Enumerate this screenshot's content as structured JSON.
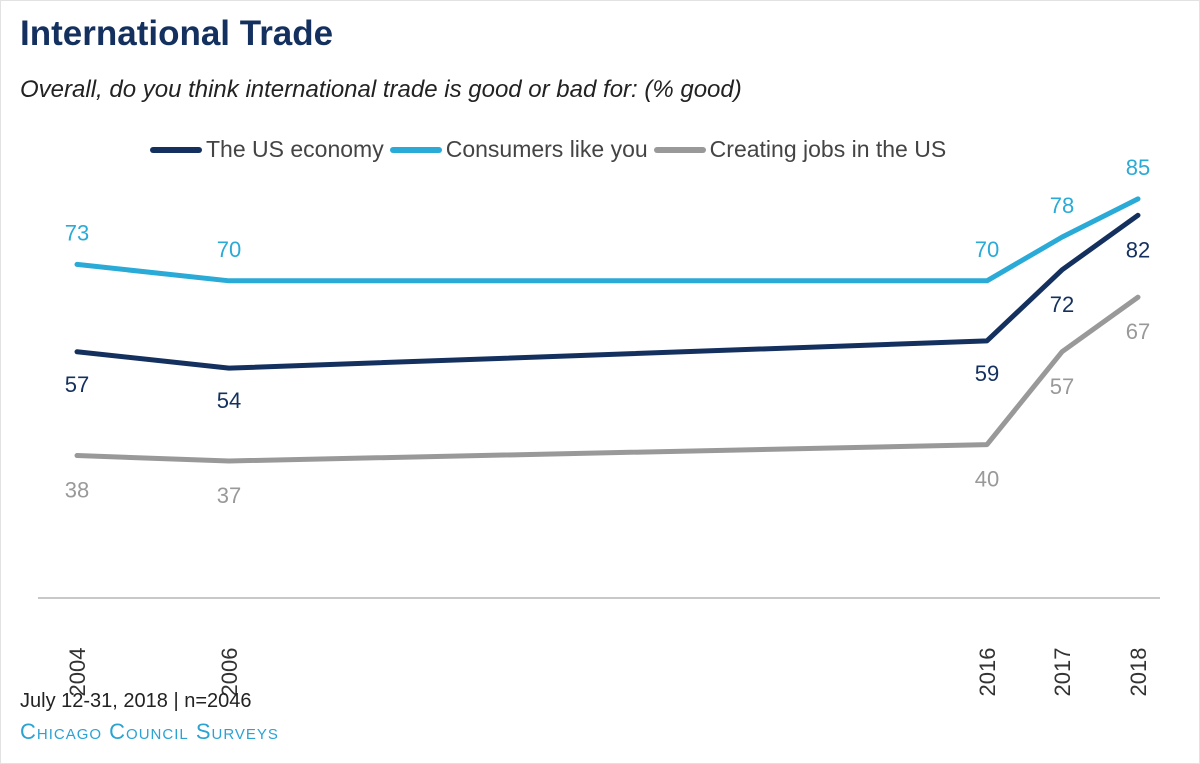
{
  "header": {
    "title": "International Trade",
    "subtitle": "Overall, do you think international trade is good or bad for: (% good)"
  },
  "footer": {
    "date_note": "July 12-31, 2018 | n=2046",
    "source": "Chicago Council Surveys"
  },
  "colors": {
    "title": "#14305e",
    "us_economy": "#14305e",
    "consumers": "#2aaad6",
    "jobs": "#999999"
  },
  "chart_data": {
    "type": "line",
    "title": "International Trade",
    "subtitle": "Overall, do you think international trade is good or bad for: (% good)",
    "x": [
      "2004",
      "2006",
      "2016",
      "2017",
      "2018"
    ],
    "xlabel": "",
    "ylabel": "",
    "ylim": [
      0,
      100
    ],
    "grid": false,
    "legend_position": "top",
    "series": [
      {
        "name": "The US economy",
        "color": "#14305e",
        "values": [
          57,
          54,
          59,
          72,
          82
        ]
      },
      {
        "name": "Consumers like you",
        "color": "#2aaad6",
        "values": [
          73,
          70,
          70,
          78,
          85
        ]
      },
      {
        "name": "Creating jobs in the US",
        "color": "#999999",
        "values": [
          38,
          37,
          40,
          57,
          67
        ]
      }
    ]
  }
}
